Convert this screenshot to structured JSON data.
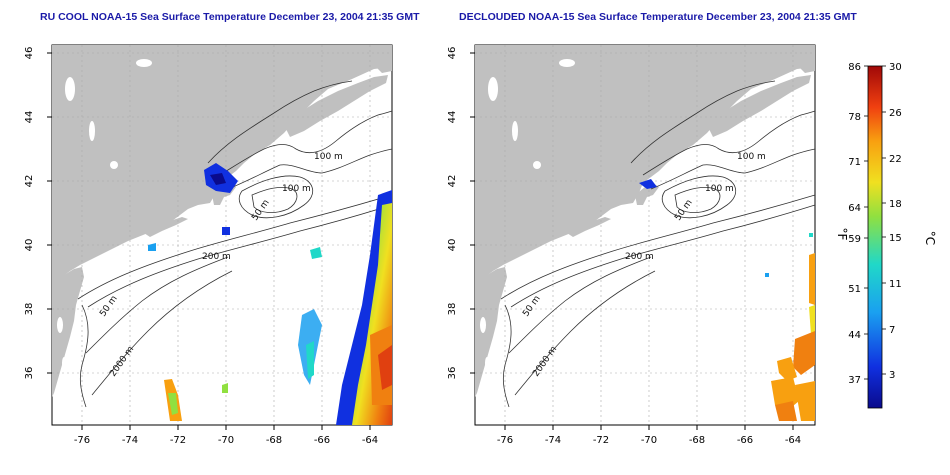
{
  "colors": {
    "land": "#c0c0c0",
    "ocean": "#ffffff",
    "title": "#1a1aa8",
    "contour": "#333333"
  },
  "panels": [
    {
      "title": "RU COOL NOAA-15 Sea Surface Temperature December 23, 2004 21:35 GMT",
      "lat_ticks": [
        "46",
        "44",
        "42",
        "40",
        "38",
        "36"
      ],
      "lon_ticks": [
        "-76",
        "-74",
        "-72",
        "-70",
        "-68",
        "-66",
        "-64"
      ],
      "contour_labels": [
        "100 m",
        "100 m",
        "50 m",
        "200 m",
        "50 m",
        "2000 m"
      ]
    },
    {
      "title": "DECLOUDED NOAA-15 Sea Surface Temperature December 23, 2004 21:35 GMT",
      "lat_ticks": [
        "46",
        "44",
        "42",
        "40",
        "38",
        "36"
      ],
      "lon_ticks": [
        "-76",
        "-74",
        "-72",
        "-70",
        "-68",
        "-66",
        "-64"
      ],
      "contour_labels": [
        "100 m",
        "100 m",
        "50 m",
        "200 m",
        "50 m",
        "2000 m"
      ]
    }
  ],
  "colorbar": {
    "fahrenheit_label": "°F",
    "celsius_label": "°C",
    "fahrenheit_ticks": [
      "86",
      "78",
      "71",
      "64",
      "59",
      "51",
      "44",
      "37"
    ],
    "celsius_ticks": [
      "30",
      "26",
      "22",
      "18",
      "15",
      "11",
      "7",
      "3"
    ],
    "celsius_range": [
      0,
      30
    ]
  }
}
